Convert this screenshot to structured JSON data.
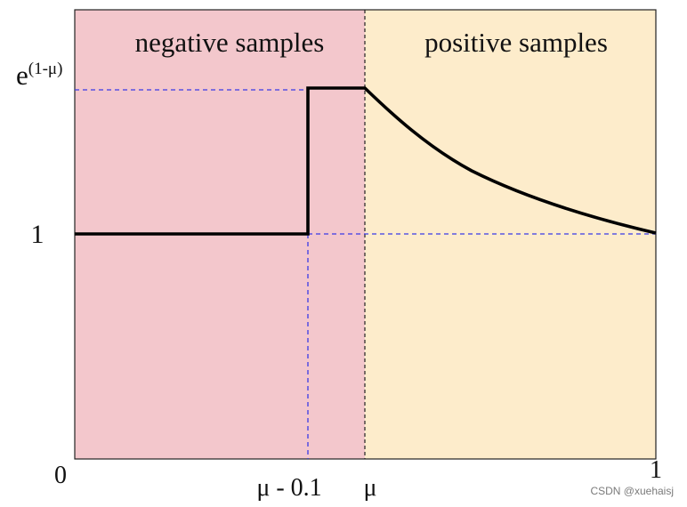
{
  "regions": {
    "negative": {
      "label": "negative samples",
      "color": "#f3c7cc"
    },
    "positive": {
      "label": "positive samples",
      "color": "#fdeccb"
    }
  },
  "x_axis": {
    "ticks": [
      {
        "label": "0",
        "value": 0
      },
      {
        "label": "μ - 0.1",
        "value": 0.4
      },
      {
        "label": "μ",
        "value": 0.5
      },
      {
        "label": "1",
        "value": 1
      }
    ]
  },
  "y_axis": {
    "ticks": [
      {
        "label": "1",
        "value": 1
      },
      {
        "label_base": "e",
        "label_sup": "(1-μ)",
        "value": 1.6487
      }
    ]
  },
  "curve": {
    "description_points": [
      {
        "x": 0,
        "y": 1
      },
      {
        "x": 0.4,
        "y": 1
      },
      {
        "x": 0.4,
        "y": 1.6487
      },
      {
        "x": 0.5,
        "y": 1.6487
      },
      {
        "x": 1,
        "y": 1
      }
    ],
    "color": "#000000"
  },
  "guides": {
    "color": "#3a3ae6",
    "divider_color": "#222222"
  },
  "watermark": "CSDN @xuehaisj"
}
